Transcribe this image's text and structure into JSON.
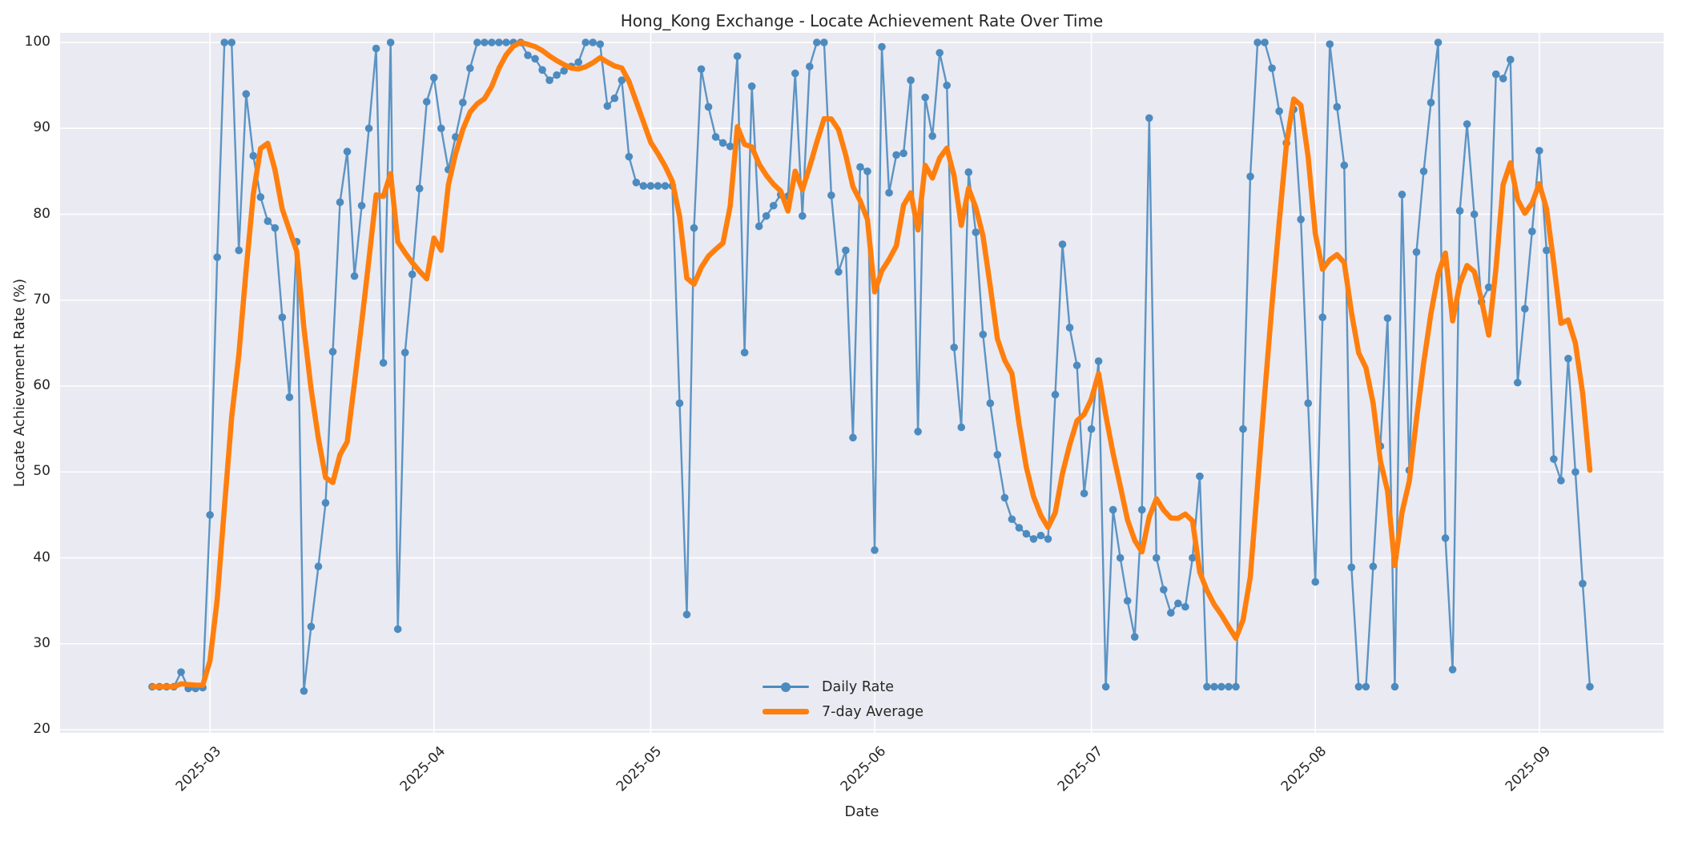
{
  "title": "Hong_Kong Exchange - Locate Achievement Rate Over Time",
  "colors": {
    "daily_line": "#4c8bbf",
    "avg_line": "#ff7f0e",
    "plot_bg": "#eaeaf2",
    "grid": "#ffffff",
    "text": "#262626"
  },
  "chart_data": {
    "type": "line",
    "title": "Hong_Kong Exchange - Locate Achievement Rate Over Time",
    "xlabel": "Date",
    "ylabel": "Locate Achievement Rate (%)",
    "ylim": [
      20,
      100
    ],
    "yticks": [
      20,
      30,
      40,
      50,
      60,
      70,
      80,
      90,
      100
    ],
    "xticks": [
      "2025-03",
      "2025-04",
      "2025-05",
      "2025-06",
      "2025-07",
      "2025-08",
      "2025-09"
    ],
    "grid": true,
    "legend_position": "lower center-right inside",
    "start_date": "2025-02-21",
    "series": [
      {
        "name": "Daily Rate",
        "style": "line+markers",
        "values": [
          25.0,
          25.0,
          25.0,
          25.0,
          26.7,
          24.8,
          24.8,
          24.9,
          45.0,
          75.0,
          100.0,
          100.0,
          75.8,
          94.0,
          86.8,
          82.0,
          79.2,
          78.4,
          68.0,
          58.7,
          76.8,
          24.5,
          32.0,
          39.0,
          46.4,
          64.0,
          81.4,
          87.3,
          72.8,
          81.0,
          90.0,
          99.3,
          62.7,
          100.0,
          31.7,
          63.9,
          73.0,
          83.0,
          93.1,
          95.9,
          90.0,
          85.2,
          89.0,
          93.0,
          97.0,
          100.0,
          100.0,
          100.0,
          100.0,
          100.0,
          100.0,
          100.0,
          98.5,
          98.1,
          96.8,
          95.6,
          96.2,
          96.7,
          97.2,
          97.7,
          100.0,
          100.0,
          99.8,
          92.6,
          93.5,
          95.6,
          86.7,
          83.7,
          83.3,
          83.3,
          83.3,
          83.3,
          83.3,
          58.0,
          33.4,
          78.4,
          96.9,
          92.5,
          89.0,
          88.3,
          87.9,
          98.4,
          63.9,
          94.9,
          78.6,
          79.8,
          81.0,
          82.3,
          82.1,
          96.4,
          79.8,
          97.2,
          100.0,
          100.0,
          82.2,
          73.3,
          75.8,
          54.0,
          85.5,
          85.0,
          40.9,
          99.5,
          82.5,
          86.9,
          87.1,
          95.6,
          54.7,
          93.6,
          89.1,
          98.8,
          95.0,
          64.5,
          55.2,
          84.9,
          77.9,
          66.0,
          58.0,
          52.0,
          47.0,
          44.5,
          43.5,
          42.8,
          42.2,
          42.6,
          42.2,
          59.0,
          76.5,
          66.8,
          62.4,
          47.5,
          55.0,
          62.9,
          25.0,
          45.6,
          40.0,
          35.0,
          30.8,
          45.6,
          91.2,
          40.0,
          36.3,
          33.6,
          34.7,
          34.3,
          40.0,
          49.5,
          25.0,
          25.0,
          25.0,
          25.0,
          25.0,
          55.0,
          84.4,
          100.0,
          100.0,
          97.0,
          92.0,
          88.3,
          92.2,
          79.4,
          58.0,
          37.2,
          68.0,
          99.8,
          92.5,
          85.7,
          38.9,
          25.0,
          25.0,
          39.0,
          53.0,
          67.9,
          25.0,
          82.3,
          50.2,
          75.6,
          85.0,
          93.0,
          100.0,
          42.3,
          27.0,
          80.4,
          90.5,
          80.0,
          69.8,
          71.5,
          96.3,
          95.8,
          98.0,
          60.4,
          69.0,
          78.0,
          87.4,
          75.8,
          51.5,
          49.0,
          63.2,
          50.0,
          37.0,
          25.0
        ]
      },
      {
        "name": "7-day Average",
        "style": "thick line",
        "derived": "rolling mean of Daily Rate, window 7, min_periods 1"
      }
    ]
  },
  "legend": {
    "daily_label": "Daily Rate",
    "avg_label": "7-day Average"
  }
}
